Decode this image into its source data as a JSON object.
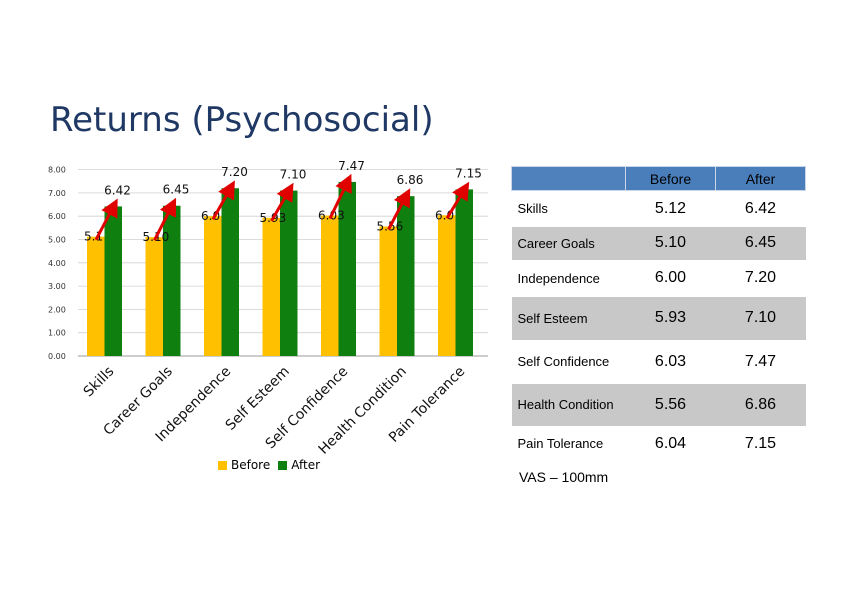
{
  "page_title": "Returns (Psychosocial)",
  "chart_data": {
    "type": "bar",
    "categories": [
      "Skills",
      "Career Goals",
      "Independence",
      "Self Esteem",
      "Self Confidence",
      "Health Condition",
      "Pain Tolerance"
    ],
    "series": [
      {
        "name": "Before",
        "values": [
          5.12,
          5.1,
          6.0,
          5.93,
          6.03,
          5.56,
          6.04
        ],
        "color": "#ffc000"
      },
      {
        "name": "After",
        "values": [
          6.42,
          6.45,
          7.2,
          7.1,
          7.47,
          6.86,
          7.15
        ],
        "color": "#0f7f0f"
      }
    ],
    "data_labels_before": [
      "5.1",
      "5.10",
      "6.0",
      "5.93",
      "6.03",
      "5.56",
      "6.0"
    ],
    "data_labels_after": [
      "6.42",
      "6.45",
      "7.20",
      "7.10",
      "7.47",
      "6.86",
      "7.15"
    ],
    "y_ticks": [
      "0.00",
      "1.00",
      "2.00",
      "3.00",
      "4.00",
      "5.00",
      "6.00",
      "7.00",
      "8.00"
    ],
    "ylim": [
      0,
      8
    ],
    "grid": true,
    "legend": "bottom",
    "arrow_color": "#e00000"
  },
  "table": {
    "headers": [
      "",
      "Before",
      "After"
    ],
    "rows": [
      {
        "label": "Skills",
        "before": "5.12",
        "after": "6.42"
      },
      {
        "label": "Career Goals",
        "before": "5.10",
        "after": "6.45"
      },
      {
        "label": "Independence",
        "before": "6.00",
        "after": "7.20"
      },
      {
        "label": "Self Esteem",
        "before": "5.93",
        "after": "7.10"
      },
      {
        "label": "Self Confidence",
        "before": "6.03",
        "after": "7.47"
      },
      {
        "label": "Health Condition",
        "before": "5.56",
        "after": "6.86"
      },
      {
        "label": "Pain Tolerance",
        "before": "6.04",
        "after": "7.15"
      }
    ]
  },
  "note": "VAS – 100mm"
}
